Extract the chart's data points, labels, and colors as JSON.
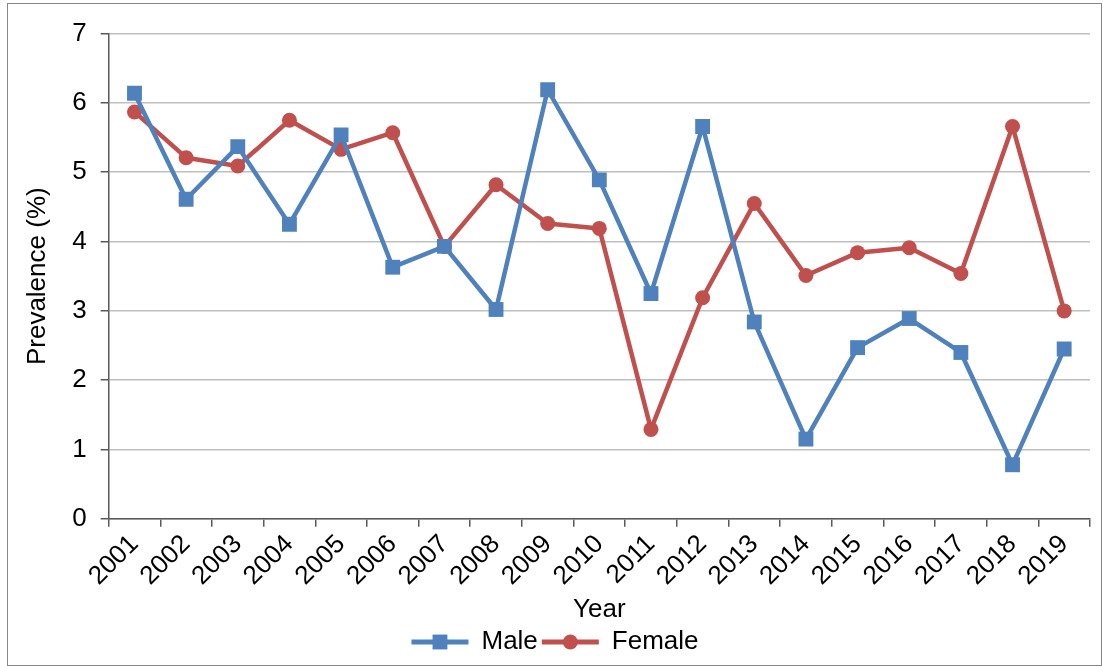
{
  "chart_data": {
    "type": "line",
    "xlabel": "Year",
    "ylabel": "Prevalence (%)",
    "categories": [
      "2001",
      "2002",
      "2003",
      "2004",
      "2005",
      "2006",
      "2007",
      "2008",
      "2009",
      "2010",
      "2011",
      "2012",
      "2013",
      "2014",
      "2015",
      "2016",
      "2017",
      "2018",
      "2019"
    ],
    "series": [
      {
        "name": "Male",
        "color": "#4f81bd",
        "marker": "square",
        "values": [
          6.14,
          4.61,
          5.37,
          4.25,
          5.54,
          3.63,
          3.93,
          3.02,
          6.19,
          4.89,
          3.25,
          5.66,
          2.84,
          1.15,
          2.47,
          2.89,
          2.4,
          0.78,
          2.45
        ]
      },
      {
        "name": "Female",
        "color": "#c0504d",
        "marker": "circle",
        "values": [
          5.87,
          5.21,
          5.09,
          5.75,
          5.33,
          5.57,
          3.93,
          4.82,
          4.26,
          4.19,
          1.29,
          3.19,
          4.55,
          3.51,
          3.84,
          3.91,
          3.54,
          5.66,
          3.0
        ]
      }
    ],
    "ylim": [
      0,
      7
    ],
    "yticks": [
      0,
      1,
      2,
      3,
      4,
      5,
      6,
      7
    ],
    "grid": "y",
    "legend": "bottom",
    "line_style": "solid"
  }
}
